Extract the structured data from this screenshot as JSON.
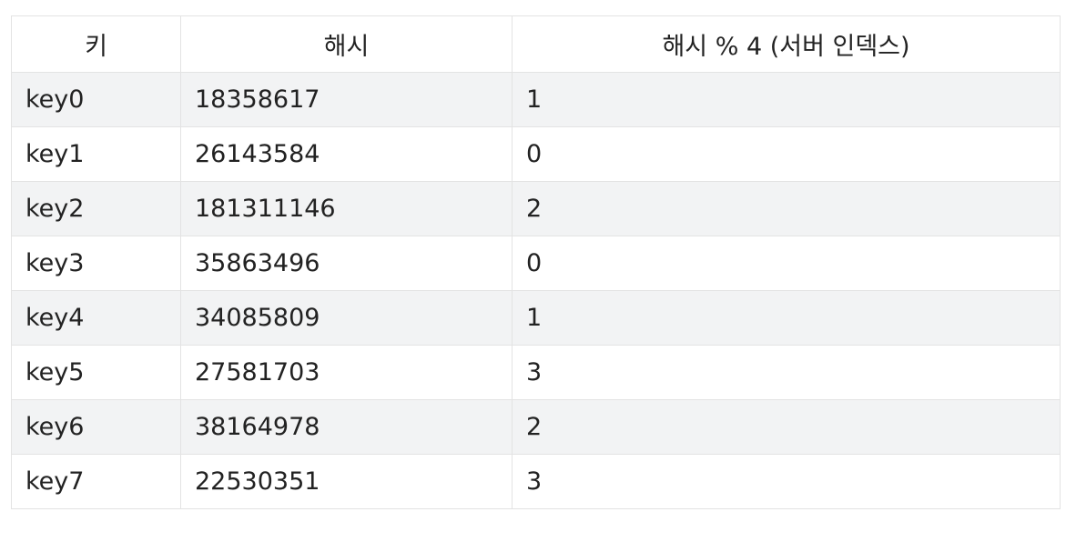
{
  "table": {
    "headers": [
      "키",
      "해시",
      "해시 % 4 (서버 인덱스)"
    ],
    "rows": [
      [
        "key0",
        "18358617",
        "1"
      ],
      [
        "key1",
        "26143584",
        "0"
      ],
      [
        "key2",
        "181311146",
        "2"
      ],
      [
        "key3",
        "35863496",
        "0"
      ],
      [
        "key4",
        "34085809",
        "1"
      ],
      [
        "key5",
        "27581703",
        "3"
      ],
      [
        "key6",
        "38164978",
        "2"
      ],
      [
        "key7",
        "22530351",
        "3"
      ]
    ]
  }
}
